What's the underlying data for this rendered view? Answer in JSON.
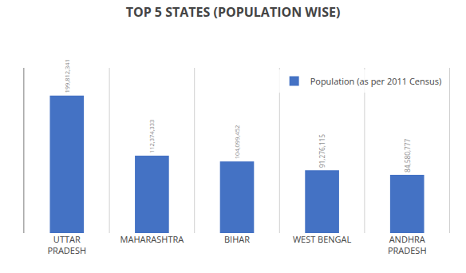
{
  "chart_data": {
    "type": "bar",
    "title": "TOP 5 STATES (POPULATION WISE)",
    "categories": [
      "UTTAR\nPRADESH",
      "MAHARASHTRA",
      "BIHAR",
      "WEST BENGAL",
      "ANDHRA\nPRADESH"
    ],
    "series": [
      {
        "name": "Population (as per 2011 Census)",
        "color": "#4472C4",
        "values": [
          199812341,
          112374333,
          104099452,
          91276115,
          84580777
        ],
        "value_labels": [
          "199,812,341",
          "112,374,333",
          "104,099,452",
          "91,276,115",
          "84,580,777"
        ]
      }
    ],
    "ylim": [
      0,
      240000000
    ],
    "data_labels": true,
    "grid": true,
    "legend": "upper right",
    "tick_labels": "x"
  }
}
